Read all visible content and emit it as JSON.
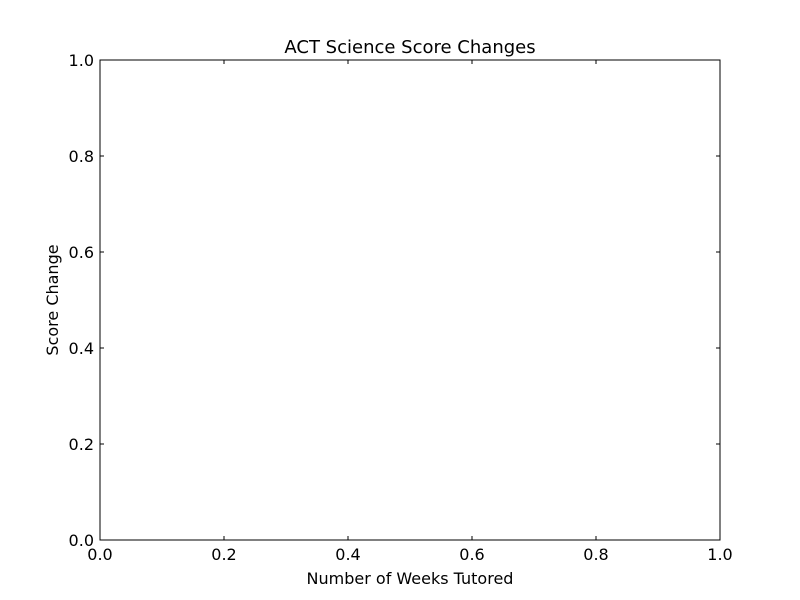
{
  "chart_data": {
    "type": "line",
    "title": "ACT Science Score Changes",
    "xlabel": "Number of Weeks Tutored",
    "ylabel": "Score Change",
    "xlim": [
      0.0,
      1.0
    ],
    "ylim": [
      0.0,
      1.0
    ],
    "x_ticks": [
      "0.0",
      "0.2",
      "0.4",
      "0.6",
      "0.8",
      "1.0"
    ],
    "y_ticks": [
      "0.0",
      "0.2",
      "0.4",
      "0.6",
      "0.8",
      "1.0"
    ],
    "series": [],
    "grid": false
  },
  "colors": {
    "axis": "#000000",
    "background": "#ffffff"
  }
}
